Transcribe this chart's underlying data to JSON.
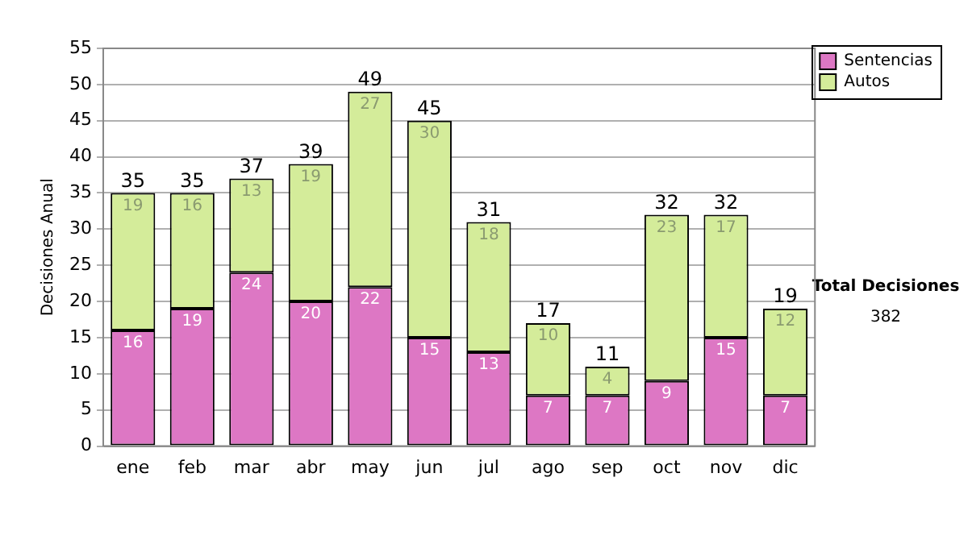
{
  "chart_data": {
    "type": "bar",
    "stacked": true,
    "ylabel": "Decisiones Anual",
    "categories": [
      "ene",
      "feb",
      "mar",
      "abr",
      "may",
      "jun",
      "jul",
      "ago",
      "sep",
      "oct",
      "nov",
      "dic"
    ],
    "series": [
      {
        "name": "Sentencias",
        "color": "#dd77c4",
        "values": [
          16,
          19,
          24,
          20,
          22,
          15,
          13,
          7,
          7,
          9,
          15,
          7
        ]
      },
      {
        "name": "Autos",
        "color": "#d4ec9a",
        "values": [
          19,
          16,
          13,
          19,
          27,
          30,
          18,
          10,
          4,
          23,
          17,
          12
        ]
      }
    ],
    "totals": [
      "35",
      "35",
      "37",
      "39",
      "49",
      "45",
      "31",
      "17",
      "11",
      "32",
      "32",
      "19"
    ],
    "ylim": [
      0,
      55
    ],
    "yticks": [
      0,
      5,
      10,
      15,
      20,
      25,
      30,
      35,
      40,
      45,
      50,
      55
    ],
    "grid": "y",
    "legend": "right",
    "data_labels": true,
    "annotations": [
      "Total Decisiones",
      "382"
    ]
  }
}
